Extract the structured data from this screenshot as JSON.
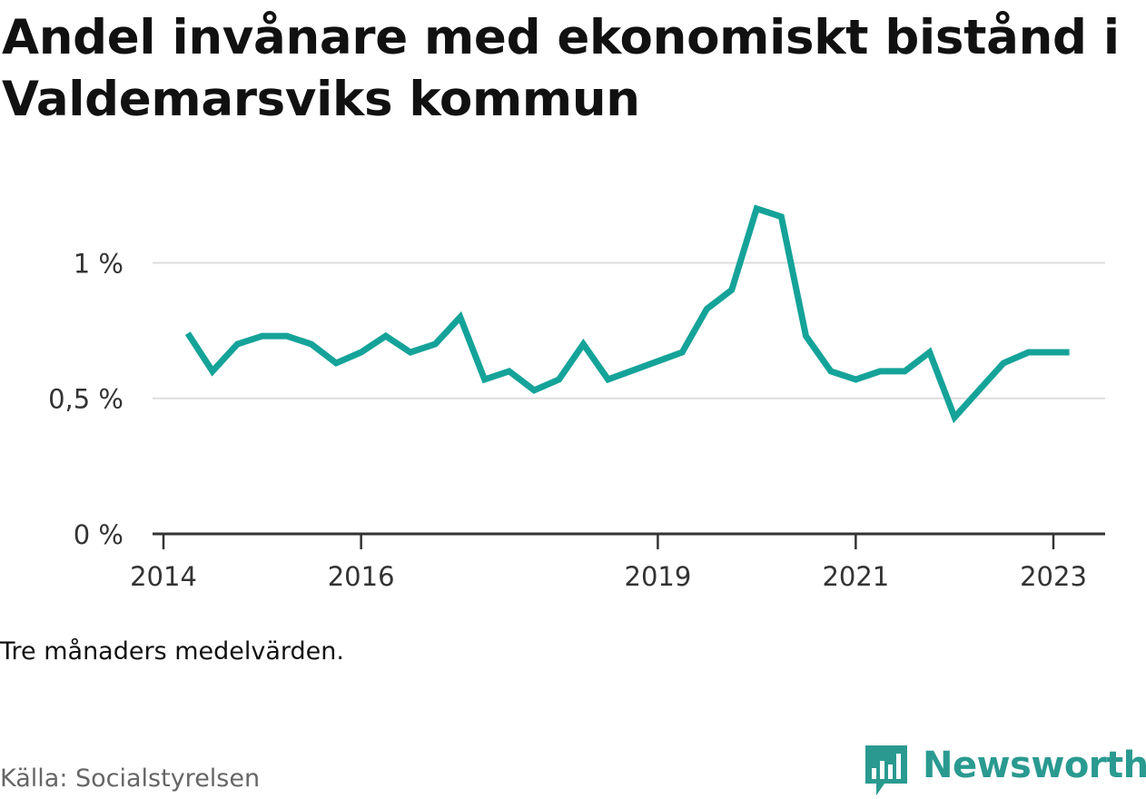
{
  "title": "Andel invånare med ekonomiskt bistånd i Valdemarsviks kommun",
  "note": "Tre månaders medelvärden.",
  "source": "Källa: Socialstyrelsen",
  "brand": {
    "name": "Newsworthy",
    "icon": "newsworthy-logo-icon",
    "color": "#2a9a90"
  },
  "chart_data": {
    "type": "line",
    "title": "Andel invånare med ekonomiskt bistånd i Valdemarsviks kommun",
    "xlabel": "",
    "ylabel": "",
    "ylim": [
      0,
      1.3
    ],
    "xlim": [
      "2014-01-01",
      "2023-06-01"
    ],
    "y_ticks": [
      {
        "value": 0,
        "label": "0 %"
      },
      {
        "value": 0.5,
        "label": "0,5 %"
      },
      {
        "value": 1,
        "label": "1 %"
      }
    ],
    "x_ticks": [
      {
        "value": "2014-01-01",
        "label": "2014"
      },
      {
        "value": "2016-01-01",
        "label": "2016"
      },
      {
        "value": "2019-01-01",
        "label": "2019"
      },
      {
        "value": "2021-01-01",
        "label": "2021"
      },
      {
        "value": "2023-01-01",
        "label": "2023"
      }
    ],
    "grid": true,
    "legend": "none",
    "color": "#15a399",
    "series": [
      {
        "x": [
          "2014-04-01",
          "2014-07-01",
          "2014-10-01",
          "2015-01-01",
          "2015-04-01",
          "2015-07-01",
          "2015-10-01",
          "2016-01-01",
          "2016-04-01",
          "2016-07-01",
          "2016-10-01",
          "2017-01-01",
          "2017-04-01",
          "2017-07-01",
          "2017-10-01",
          "2018-01-01",
          "2018-04-01",
          "2018-07-01",
          "2019-04-01",
          "2019-07-01",
          "2019-10-01",
          "2020-01-01",
          "2020-04-01",
          "2020-07-01",
          "2020-10-01",
          "2021-01-01",
          "2021-04-01",
          "2021-07-01",
          "2021-10-01",
          "2022-01-01",
          "2022-04-01",
          "2022-07-01",
          "2022-10-01",
          "2023-01-01",
          "2023-03-01"
        ],
        "values": [
          0.74,
          0.6,
          0.7,
          0.73,
          0.73,
          0.7,
          0.63,
          0.67,
          0.73,
          0.67,
          0.7,
          0.8,
          0.57,
          0.6,
          0.53,
          0.57,
          0.7,
          0.57,
          0.67,
          0.83,
          0.9,
          1.2,
          1.17,
          0.73,
          0.6,
          0.57,
          0.6,
          0.6,
          0.67,
          0.43,
          0.53,
          0.63,
          0.67,
          0.67,
          0.67
        ]
      }
    ]
  }
}
